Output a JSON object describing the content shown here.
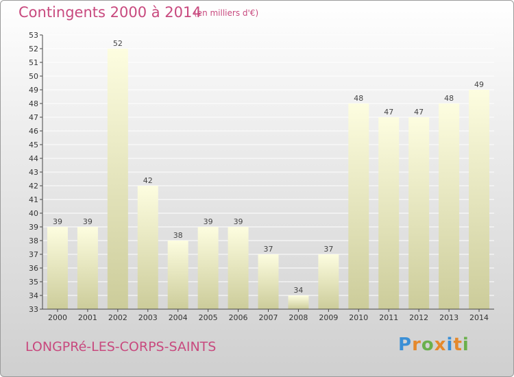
{
  "header": {
    "title": "Contingents 2000 à 2014",
    "subtitle": "(en milliers d'€)"
  },
  "footer": {
    "place": "LONGPRé-LES-CORPS-SAINTS",
    "brand": "Proxiti"
  },
  "colors": {
    "title": "#c8497e",
    "bar_top": "#fdfde0",
    "bar_bottom": "#cccc9a",
    "axis": "#444444",
    "gridline": "#ffffff"
  },
  "chart_data": {
    "type": "bar",
    "title": "Contingents 2000 à 2014",
    "subtitle": "(en milliers d'€)",
    "categories": [
      "2000",
      "2001",
      "2002",
      "2003",
      "2004",
      "2005",
      "2006",
      "2007",
      "2008",
      "2009",
      "2010",
      "2011",
      "2012",
      "2013",
      "2014"
    ],
    "values": [
      39,
      39,
      52,
      42,
      38,
      39,
      39,
      37,
      34,
      37,
      48,
      47,
      47,
      48,
      49
    ],
    "ylim": [
      33,
      53
    ],
    "yticks": [
      33,
      34,
      35,
      36,
      37,
      38,
      39,
      40,
      41,
      42,
      43,
      44,
      45,
      46,
      47,
      48,
      49,
      50,
      51,
      52,
      53
    ],
    "xlabel": "",
    "ylabel": "",
    "grid": true
  }
}
